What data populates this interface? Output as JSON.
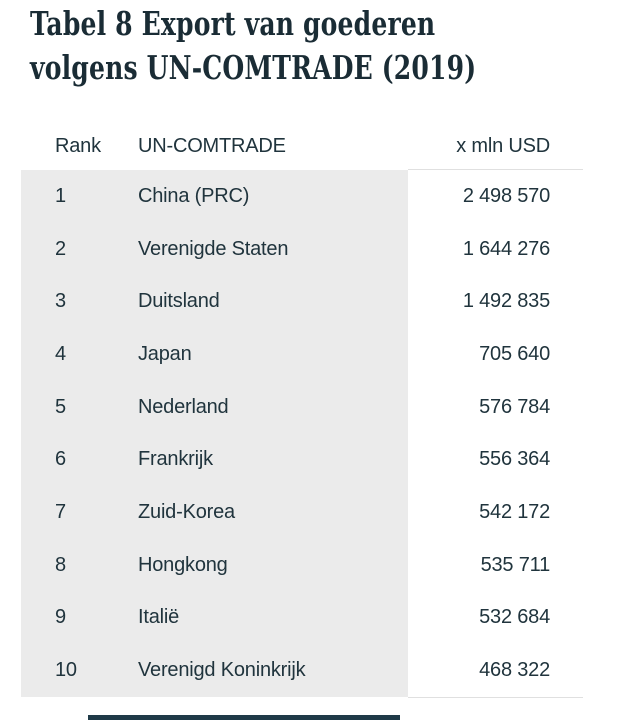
{
  "title": {
    "line1": "Tabel 8 Export van goederen",
    "line2": "volgens UN-COMTRADE (2019)"
  },
  "table": {
    "columns": [
      "Rank",
      "UN-COMTRADE",
      "x mln USD"
    ],
    "rows": [
      {
        "rank": "1",
        "country": "China (PRC)",
        "value": "2 498 570"
      },
      {
        "rank": "2",
        "country": "Verenigde Staten",
        "value": "1 644 276"
      },
      {
        "rank": "3",
        "country": "Duitsland",
        "value": "1 492 835"
      },
      {
        "rank": "4",
        "country": "Japan",
        "value": "705 640"
      },
      {
        "rank": "5",
        "country": "Nederland",
        "value": "576 784"
      },
      {
        "rank": "6",
        "country": "Frankrijk",
        "value": "556 364"
      },
      {
        "rank": "7",
        "country": "Zuid-Korea",
        "value": "542 172"
      },
      {
        "rank": "8",
        "country": "Hongkong",
        "value": "535 711"
      },
      {
        "rank": "9",
        "country": "Italië",
        "value": "532 684"
      },
      {
        "rank": "10",
        "country": "Verenigd Koninkrijk",
        "value": "468 322"
      }
    ]
  },
  "colors": {
    "title_text": "#1a2c35",
    "body_text": "#20343d",
    "row_shading": "#ebebeb",
    "hairline": "#e0e0e0",
    "bottom_bar": "#1f3a48",
    "background": "#ffffff"
  },
  "chart_data": {
    "type": "table",
    "title": "Tabel 8 Export van goederen volgens UN-COMTRADE (2019)",
    "columns": [
      "Rank",
      "UN-COMTRADE",
      "x mln USD"
    ],
    "rows": [
      [
        1,
        "China (PRC)",
        2498570
      ],
      [
        2,
        "Verenigde Staten",
        1644276
      ],
      [
        3,
        "Duitsland",
        1492835
      ],
      [
        4,
        "Japan",
        705640
      ],
      [
        5,
        "Nederland",
        576784
      ],
      [
        6,
        "Frankrijk",
        556364
      ],
      [
        7,
        "Zuid-Korea",
        542172
      ],
      [
        8,
        "Hongkong",
        535711
      ],
      [
        9,
        "Italië",
        532684
      ],
      [
        10,
        "Verenigd Koninkrijk",
        468322
      ]
    ],
    "units": "x mln USD",
    "source": "UN-COMTRADE",
    "year": 2019
  }
}
